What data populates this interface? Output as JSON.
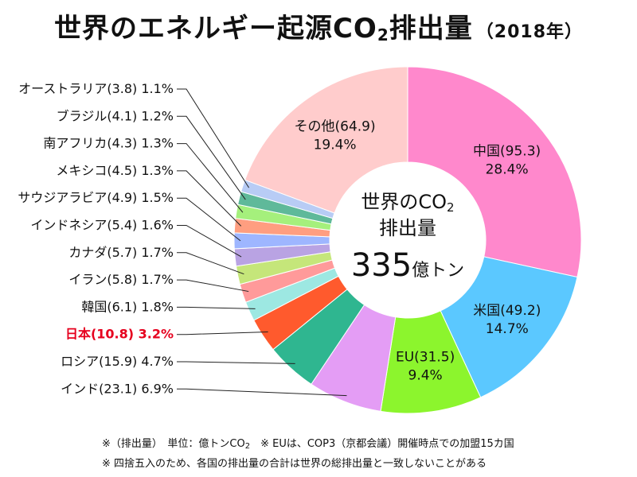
{
  "title": {
    "main": "世界のエネルギー起源CO",
    "sub": "2",
    "tail": "排出量",
    "year": "（2018年）"
  },
  "center": {
    "line1_main": "世界のCO",
    "line1_sub": "2",
    "line2": "排出量",
    "value": "335",
    "unit": "億トン"
  },
  "notes": {
    "note1_a": "※（排出量）　単位：億トンCO",
    "note1_sub": "2",
    "note1_b": "　※ EUは、COP3（京都会議）開催時点での加盟15カ国",
    "note2": "※ 四捨五入のため、各国の排出量の合計は世界の総排出量と一致しないことがある"
  },
  "colors": {
    "highlight_text": "#e6001e"
  },
  "chart_data": {
    "type": "pie",
    "variant": "donut",
    "unit": "億トンCO2",
    "total": 335,
    "slices": [
      {
        "name": "中国",
        "value": 95.3,
        "percent": 28.4,
        "value_text": "(95.3)",
        "percent_text": "28.4%",
        "color": "#ff88cc",
        "label_position": "inside"
      },
      {
        "name": "米国",
        "value": 49.2,
        "percent": 14.7,
        "value_text": "(49.2)",
        "percent_text": "14.7%",
        "color": "#5bc8ff",
        "label_position": "inside"
      },
      {
        "name": "EU",
        "value": 31.5,
        "percent": 9.4,
        "value_text": "(31.5)",
        "percent_text": "9.4%",
        "color": "#8cf52d",
        "label_position": "inside"
      },
      {
        "name": "インド",
        "value": 23.1,
        "percent": 6.9,
        "value_text": "(23.1)",
        "percent_text": "6.9%",
        "color": "#e49df5",
        "label_position": "outside"
      },
      {
        "name": "ロシア",
        "value": 15.9,
        "percent": 4.7,
        "value_text": "(15.9)",
        "percent_text": "4.7%",
        "color": "#2fb690",
        "label_position": "outside"
      },
      {
        "name": "日本",
        "value": 10.8,
        "percent": 3.2,
        "value_text": "(10.8)",
        "percent_text": "3.2%",
        "color": "#ff5a2d",
        "label_position": "outside",
        "highlight": true
      },
      {
        "name": "韓国",
        "value": 6.1,
        "percent": 1.8,
        "value_text": "(6.1)",
        "percent_text": "1.8%",
        "color": "#9de8e2",
        "label_position": "outside"
      },
      {
        "name": "イラン",
        "value": 5.8,
        "percent": 1.7,
        "value_text": "(5.8)",
        "percent_text": "1.7%",
        "color": "#ff9a9a",
        "label_position": "outside"
      },
      {
        "name": "カナダ",
        "value": 5.7,
        "percent": 1.7,
        "value_text": "(5.7)",
        "percent_text": "1.7%",
        "color": "#c5e67a",
        "label_position": "outside"
      },
      {
        "name": "インドネシア",
        "value": 5.4,
        "percent": 1.6,
        "value_text": "(5.4)",
        "percent_text": "1.6%",
        "color": "#b9a3e3",
        "label_position": "outside"
      },
      {
        "name": "サウジアラビア",
        "value": 4.9,
        "percent": 1.5,
        "value_text": "(4.9)",
        "percent_text": "1.5%",
        "color": "#9eb6ff",
        "label_position": "outside"
      },
      {
        "name": "メキシコ",
        "value": 4.5,
        "percent": 1.3,
        "value_text": "(4.5)",
        "percent_text": "1.3%",
        "color": "#ff9e80",
        "label_position": "outside"
      },
      {
        "name": "南アフリカ",
        "value": 4.3,
        "percent": 1.3,
        "value_text": "(4.3)",
        "percent_text": "1.3%",
        "color": "#a5f07c",
        "label_position": "outside"
      },
      {
        "name": "ブラジル",
        "value": 4.1,
        "percent": 1.2,
        "value_text": "(4.1)",
        "percent_text": "1.2%",
        "color": "#5fb99a",
        "label_position": "outside"
      },
      {
        "name": "オーストラリア",
        "value": 3.8,
        "percent": 1.1,
        "value_text": "(3.8)",
        "percent_text": "1.1%",
        "color": "#b8ccf5",
        "label_position": "outside"
      },
      {
        "name": "その他",
        "value": 64.9,
        "percent": 19.4,
        "value_text": "(64.9)",
        "percent_text": "19.4%",
        "color": "#ffcccc",
        "label_position": "inside"
      }
    ]
  }
}
